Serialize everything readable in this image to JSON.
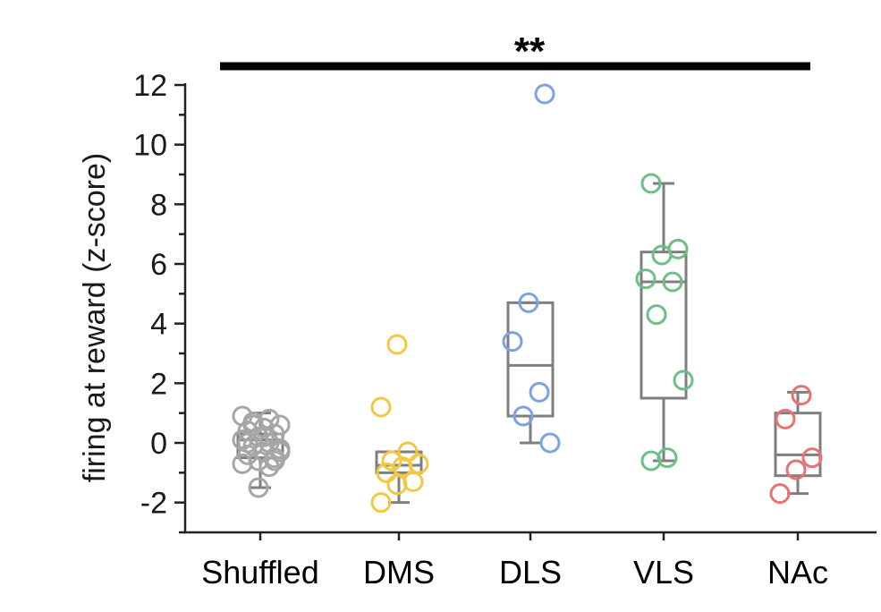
{
  "chart_data": {
    "type": "box-scatter",
    "ylabel": "firing at reward (z-score)",
    "ylim": [
      -3,
      12
    ],
    "yticks": [
      -2,
      0,
      2,
      4,
      6,
      8,
      10,
      12
    ],
    "ytick_labels": [
      "-2",
      "0",
      "2",
      "4",
      "6",
      "8",
      "10",
      "12"
    ],
    "categories": [
      "Shuffled",
      "DMS",
      "DLS",
      "VLS",
      "NAc"
    ],
    "significance": {
      "label": "**",
      "from": "Shuffled",
      "to": "NAc"
    },
    "groups": [
      {
        "name": "Shuffled",
        "color": "#a6a6a6",
        "box": {
          "whisker_low": -1.5,
          "q1": -0.5,
          "median": 0.1,
          "q3": 0.3,
          "whisker_high": 1.0
        },
        "points": [
          0.9,
          0.8,
          0.7,
          0.6,
          0.5,
          0.4,
          0.3,
          0.2,
          0.1,
          0.0,
          -0.1,
          -0.2,
          -0.3,
          -0.4,
          -0.5,
          -0.6,
          -0.7,
          -0.8,
          0.6,
          -0.3,
          0.2,
          0.0,
          -0.6,
          -1.5
        ]
      },
      {
        "name": "DMS",
        "color": "#f2c744",
        "box": {
          "whisker_low": -2.0,
          "q1": -1.0,
          "median": -0.75,
          "q3": -0.3,
          "whisker_high": -0.3
        },
        "points": [
          3.3,
          1.2,
          -0.3,
          -0.6,
          -0.7,
          -0.8,
          -1.0,
          -1.3,
          -1.4,
          -2.0
        ]
      },
      {
        "name": "DLS",
        "color": "#7aa3e5",
        "box": {
          "whisker_low": 0.0,
          "q1": 0.9,
          "median": 2.6,
          "q3": 4.7,
          "whisker_high": 4.7
        },
        "points": [
          11.7,
          4.7,
          3.4,
          1.7,
          0.9,
          0.0
        ]
      },
      {
        "name": "VLS",
        "color": "#6dbf84",
        "box": {
          "whisker_low": -0.6,
          "q1": 1.5,
          "median": 5.4,
          "q3": 6.4,
          "whisker_high": 8.7
        },
        "points": [
          8.7,
          6.5,
          6.3,
          5.5,
          5.4,
          4.3,
          2.1,
          -0.5,
          -0.6
        ]
      },
      {
        "name": "NAc",
        "color": "#e57373",
        "box": {
          "whisker_low": -1.7,
          "q1": -1.1,
          "median": -0.4,
          "q3": 1.0,
          "whisker_high": 1.7
        },
        "points": [
          1.6,
          0.8,
          -0.5,
          -0.9,
          -1.7
        ]
      }
    ]
  }
}
